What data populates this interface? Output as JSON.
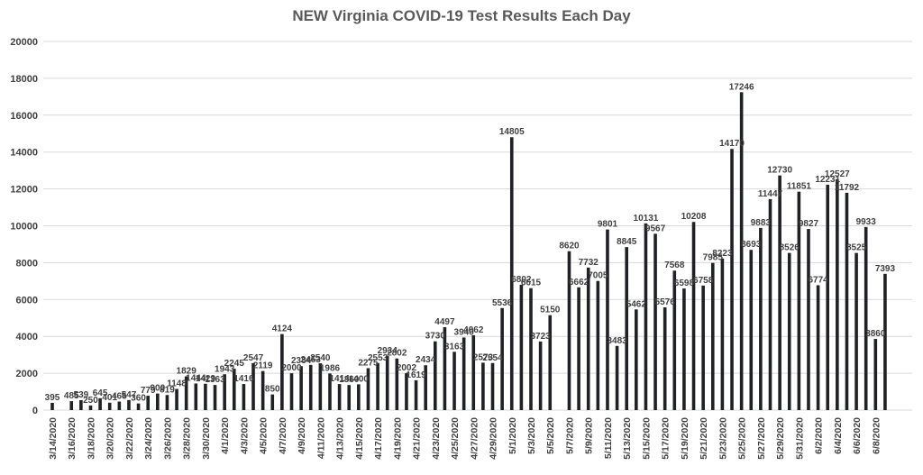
{
  "chart_data": {
    "type": "bar",
    "title": "NEW Virginia COVID-19 Test Results Each Day",
    "xlabel": "",
    "ylabel": "",
    "ylim": [
      0,
      20000
    ],
    "yticks": [
      0,
      2000,
      4000,
      6000,
      8000,
      10000,
      12000,
      14000,
      16000,
      18000,
      20000
    ],
    "grid": true,
    "legend": "none",
    "bar_color": "#1f2125",
    "x_tick_labels": [
      "3/14/2020",
      "3/16/2020",
      "3/18/2020",
      "3/20/2020",
      "3/22/2020",
      "3/24/2020",
      "3/26/2020",
      "3/28/2020",
      "3/30/2020",
      "4/1/2020",
      "4/3/2020",
      "4/5/2020",
      "4/7/2020",
      "4/9/2020",
      "4/11/2020",
      "4/13/2020",
      "4/15/2020",
      "4/17/2020",
      "4/19/2020",
      "4/21/2020",
      "4/23/2020",
      "4/25/2020",
      "4/27/2020",
      "4/29/2020",
      "5/1/2020",
      "5/3/2020",
      "5/5/2020",
      "5/7/2020",
      "5/9/2020",
      "5/11/2020",
      "5/13/2020",
      "5/15/2020",
      "5/17/2020",
      "5/19/2020",
      "5/21/2020",
      "5/23/2020",
      "5/25/2020",
      "5/27/2020",
      "5/29/2020",
      "5/31/2020",
      "6/2/2020",
      "6/4/2020",
      "6/6/2020",
      "6/8/2020"
    ],
    "categories": [
      "3/14/2020",
      "3/15/2020",
      "3/16/2020",
      "3/17/2020",
      "3/18/2020",
      "3/19/2020",
      "3/20/2020",
      "3/21/2020",
      "3/22/2020",
      "3/23/2020",
      "3/24/2020",
      "3/25/2020",
      "3/26/2020",
      "3/27/2020",
      "3/28/2020",
      "3/29/2020",
      "3/30/2020",
      "3/31/2020",
      "4/1/2020",
      "4/2/2020",
      "4/3/2020",
      "4/4/2020",
      "4/5/2020",
      "4/6/2020",
      "4/7/2020",
      "4/8/2020",
      "4/9/2020",
      "4/10/2020",
      "4/11/2020",
      "4/12/2020",
      "4/13/2020",
      "4/14/2020",
      "4/15/2020",
      "4/16/2020",
      "4/17/2020",
      "4/18/2020",
      "4/19/2020",
      "4/20/2020",
      "4/21/2020",
      "4/22/2020",
      "4/23/2020",
      "4/24/2020",
      "4/25/2020",
      "4/26/2020",
      "4/27/2020",
      "4/28/2020",
      "4/29/2020",
      "4/30/2020",
      "5/1/2020",
      "5/2/2020",
      "5/3/2020",
      "5/4/2020",
      "5/5/2020",
      "5/6/2020",
      "5/7/2020",
      "5/8/2020",
      "5/9/2020",
      "5/10/2020",
      "5/11/2020",
      "5/12/2020",
      "5/13/2020",
      "5/14/2020",
      "5/15/2020",
      "5/16/2020",
      "5/17/2020",
      "5/18/2020",
      "5/19/2020",
      "5/20/2020",
      "5/21/2020",
      "5/22/2020",
      "5/23/2020",
      "5/24/2020",
      "5/25/2020",
      "5/26/2020",
      "5/27/2020",
      "5/28/2020",
      "5/29/2020",
      "5/30/2020",
      "5/31/2020",
      "6/1/2020",
      "6/2/2020",
      "6/3/2020",
      "6/4/2020",
      "6/5/2020",
      "6/6/2020",
      "6/7/2020",
      "6/8/2020",
      "6/9/2020"
    ],
    "values": [
      395,
      null,
      485,
      539,
      250,
      645,
      401,
      465,
      547,
      360,
      779,
      900,
      819,
      1148,
      1829,
      1444,
      1429,
      1363,
      1943,
      2245,
      1416,
      2547,
      2119,
      850,
      4124,
      2000,
      2384,
      2453,
      2540,
      1986,
      1414,
      1360,
      1400,
      2275,
      2553,
      2934,
      2802,
      2002,
      1619,
      2434,
      3730,
      4497,
      3163,
      3940,
      4062,
      2573,
      2554,
      5536,
      14805,
      6802,
      6615,
      3723,
      5150,
      null,
      8620,
      6662,
      7732,
      7005,
      9801,
      3483,
      8845,
      5462,
      10131,
      9567,
      5576,
      7568,
      6598,
      10208,
      6758,
      7985,
      8223,
      14170,
      17246,
      8693,
      9883,
      11447,
      12730,
      8526,
      11851,
      9827,
      6774,
      12231,
      12527,
      11792,
      8525,
      9933,
      3860,
      7393
    ]
  }
}
